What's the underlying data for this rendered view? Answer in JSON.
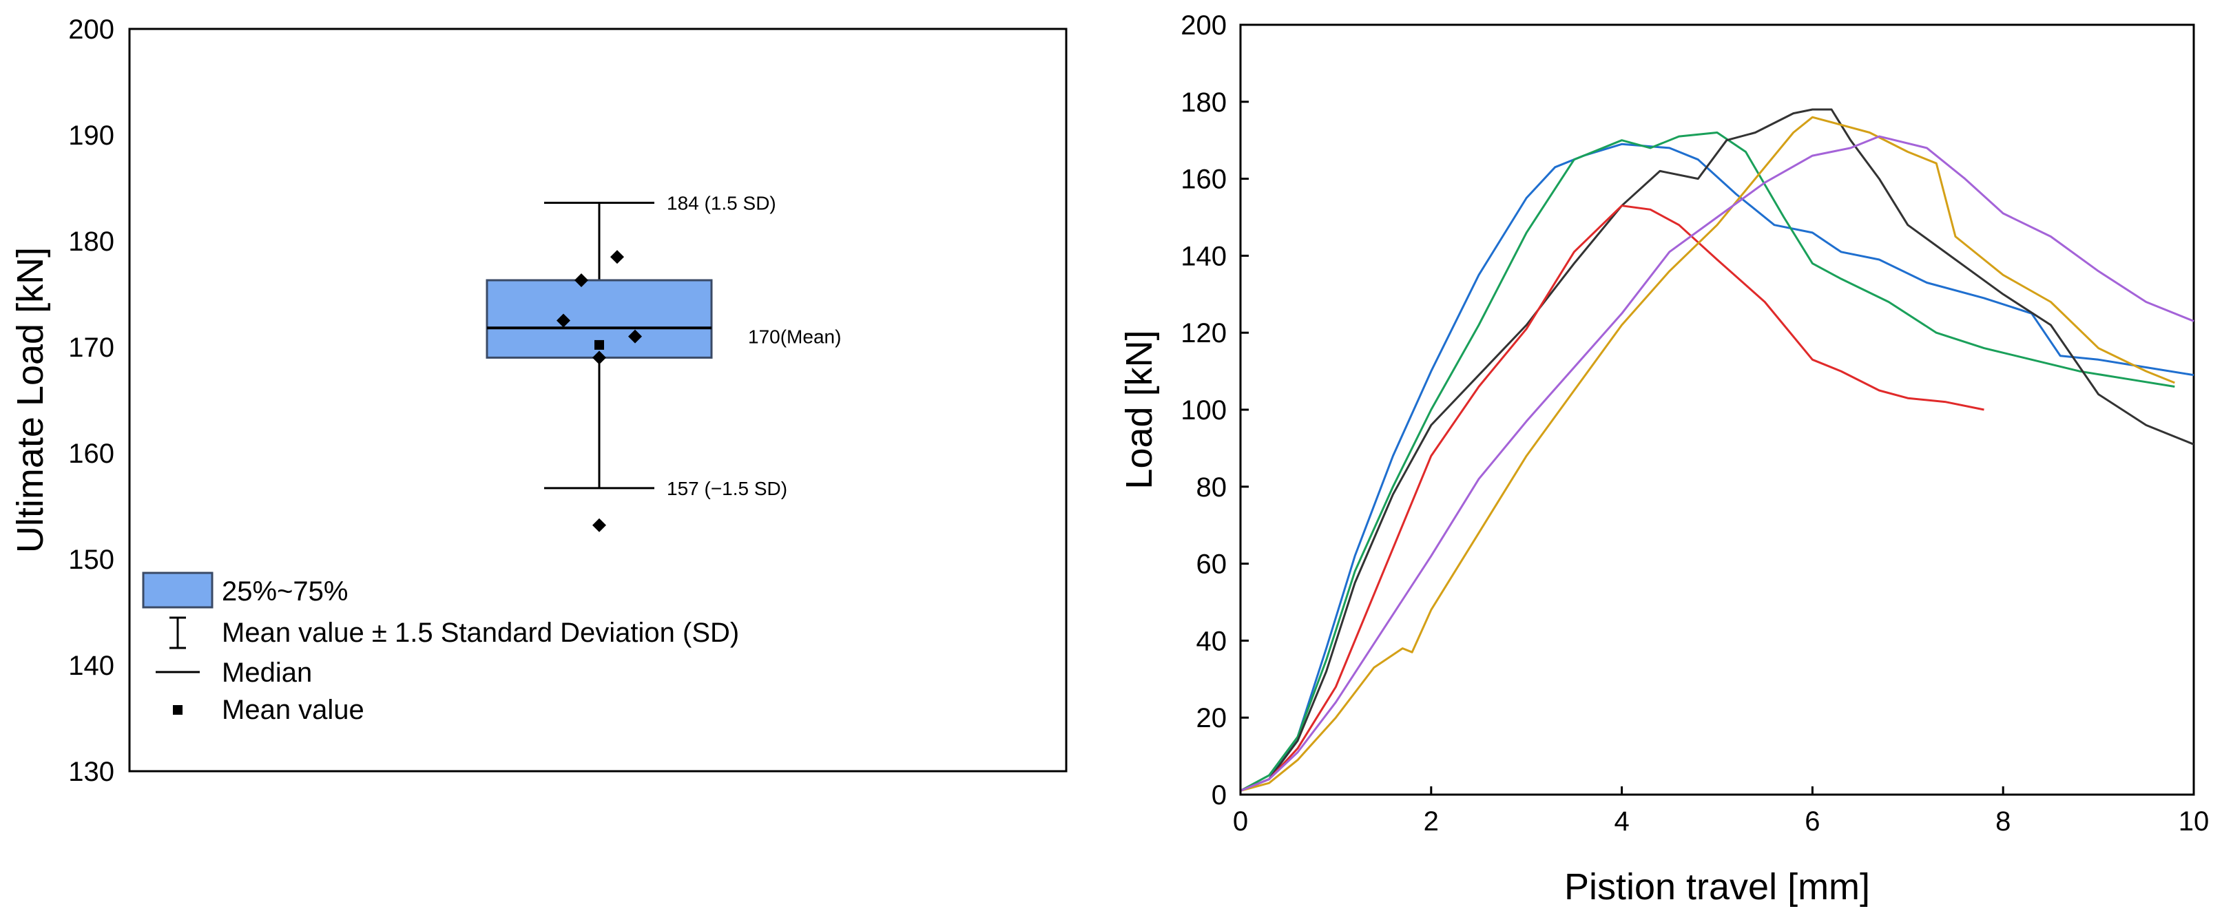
{
  "chart_data": [
    {
      "type": "box",
      "title": "",
      "ylabel": "Ultimate Load [kN]",
      "xlabel": "",
      "ylim": [
        130,
        200
      ],
      "yticks": [
        130,
        140,
        150,
        160,
        170,
        180,
        190,
        200
      ],
      "box": {
        "q1": 169.0,
        "q3": 176.3,
        "median": 171.8,
        "mean": 170.2,
        "whisker_low": 156.7,
        "whisker_high": 183.6
      },
      "points": [
        {
          "offset": -1.0,
          "y": 172.5
        },
        {
          "offset": -0.5,
          "y": 176.3
        },
        {
          "offset": 0.0,
          "y": 169.0
        },
        {
          "offset": 0.5,
          "y": 178.5
        },
        {
          "offset": 1.0,
          "y": 171.0
        },
        {
          "offset": 0.0,
          "y": 153.2
        }
      ],
      "annotations": {
        "upper": "184 (1.5 SD)",
        "mean": "170(Mean)",
        "lower": "157 (−1.5 SD)"
      },
      "legend": {
        "position": "bottom-left",
        "items": [
          {
            "symbol": "box",
            "label": "25%~75%"
          },
          {
            "symbol": "errorbar",
            "label": "Mean value ± 1.5 Standard Deviation (SD)"
          },
          {
            "symbol": "line",
            "label": "Median"
          },
          {
            "symbol": "square",
            "label": "Mean value"
          }
        ]
      },
      "colors": {
        "box_fill": "#7aaaf0",
        "box_stroke": "#3a4a66"
      }
    },
    {
      "type": "line",
      "title": "",
      "xlabel": "Pistion travel [mm]",
      "ylabel": "Load [kN]",
      "xlim": [
        0,
        10
      ],
      "ylim": [
        0,
        200
      ],
      "xticks": [
        0,
        2,
        4,
        6,
        8,
        10
      ],
      "yticks": [
        0,
        20,
        40,
        60,
        80,
        100,
        120,
        140,
        160,
        180,
        200
      ],
      "grid": false,
      "series": [
        {
          "color": "#1f6fcf",
          "x": [
            0,
            0.3,
            0.6,
            0.9,
            1.2,
            1.6,
            2.0,
            2.5,
            3.0,
            3.3,
            3.6,
            4.0,
            4.5,
            4.8,
            5.2,
            5.6,
            6.0,
            6.3,
            6.7,
            7.2,
            7.8,
            8.3,
            8.6,
            9.0,
            9.5,
            10.0
          ],
          "y": [
            1,
            4,
            15,
            38,
            62,
            88,
            110,
            135,
            155,
            163,
            166,
            169,
            168,
            165,
            156,
            148,
            146,
            141,
            139,
            133,
            129,
            125,
            114,
            113,
            111,
            109
          ]
        },
        {
          "color": "#1aa05a",
          "x": [
            0,
            0.3,
            0.6,
            0.9,
            1.2,
            1.6,
            2.0,
            2.5,
            3.0,
            3.5,
            4.0,
            4.3,
            4.6,
            5.0,
            5.3,
            5.7,
            6.0,
            6.3,
            6.8,
            7.3,
            7.8,
            8.3,
            8.8,
            9.3,
            9.8
          ],
          "y": [
            1,
            5,
            15,
            35,
            58,
            80,
            100,
            122,
            146,
            165,
            170,
            168,
            171,
            172,
            167,
            150,
            138,
            134,
            128,
            120,
            116,
            113,
            110,
            108,
            106
          ]
        },
        {
          "color": "#333333",
          "x": [
            0,
            0.3,
            0.6,
            0.9,
            1.2,
            1.6,
            2.0,
            2.5,
            3.0,
            3.5,
            4.0,
            4.4,
            4.8,
            5.1,
            5.4,
            5.8,
            6.0,
            6.2,
            6.4,
            6.7,
            7.0,
            7.5,
            8.0,
            8.5,
            9.0,
            9.5,
            10.0
          ],
          "y": [
            1,
            4,
            14,
            32,
            55,
            78,
            96,
            109,
            122,
            138,
            153,
            162,
            160,
            170,
            172,
            177,
            178,
            178,
            170,
            160,
            148,
            139,
            130,
            122,
            104,
            96,
            91
          ]
        },
        {
          "color": "#e02a2a",
          "x": [
            0,
            0.3,
            0.6,
            1.0,
            1.5,
            2.0,
            2.5,
            3.0,
            3.5,
            4.0,
            4.3,
            4.6,
            5.0,
            5.5,
            6.0,
            6.3,
            6.7,
            7.0,
            7.4,
            7.8
          ],
          "y": [
            1,
            4,
            12,
            28,
            58,
            88,
            106,
            121,
            141,
            153,
            152,
            148,
            139,
            128,
            113,
            110,
            105,
            103,
            102,
            100
          ]
        },
        {
          "color": "#d4a017",
          "x": [
            0,
            0.3,
            0.6,
            1.0,
            1.4,
            1.7,
            1.8,
            2.0,
            2.5,
            3.0,
            3.5,
            4.0,
            4.5,
            5.0,
            5.5,
            5.8,
            6.0,
            6.3,
            6.6,
            7.0,
            7.3,
            7.5,
            8.0,
            8.5,
            9.0,
            9.5,
            9.8
          ],
          "y": [
            1,
            3,
            9,
            20,
            33,
            38,
            37,
            48,
            68,
            88,
            105,
            122,
            136,
            148,
            163,
            172,
            176,
            174,
            172,
            167,
            164,
            145,
            135,
            128,
            116,
            110,
            107
          ]
        },
        {
          "color": "#a463d8",
          "x": [
            0,
            0.3,
            0.6,
            1.0,
            1.5,
            2.0,
            2.5,
            3.0,
            3.5,
            4.0,
            4.5,
            5.0,
            5.5,
            6.0,
            6.4,
            6.7,
            7.2,
            7.6,
            8.0,
            8.5,
            9.0,
            9.5,
            10.0
          ],
          "y": [
            1,
            4,
            11,
            24,
            43,
            62,
            82,
            97,
            111,
            125,
            141,
            150,
            159,
            166,
            168,
            171,
            168,
            160,
            151,
            145,
            136,
            128,
            123
          ]
        }
      ]
    }
  ]
}
